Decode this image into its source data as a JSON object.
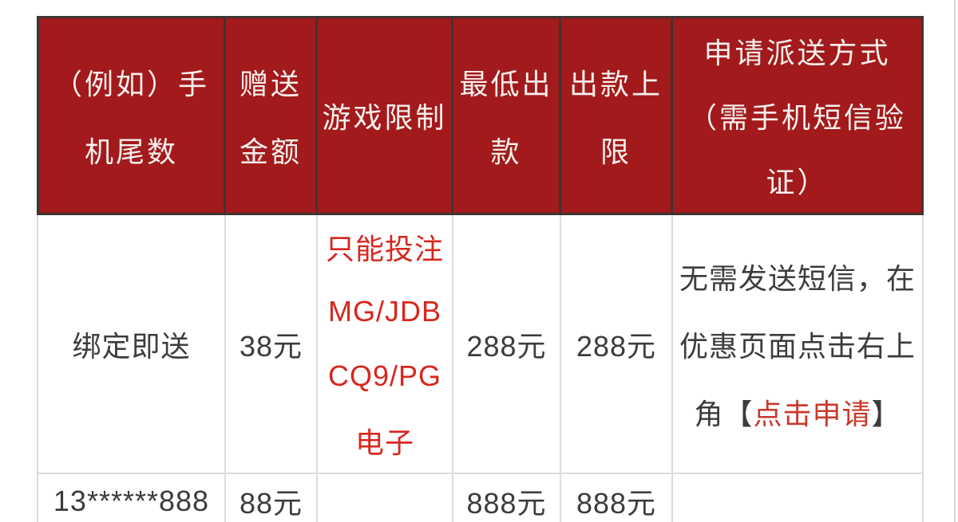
{
  "colors": {
    "header_bg": "#a21a1c",
    "header_border": "#3f3430",
    "header_text": "#f7efec",
    "body_border": "#dcdcdc",
    "body_text": "#3c3c3c",
    "restriction_red": "#d7271d",
    "apply_link_red": "#c83a2c",
    "page_bg": "#ffffff"
  },
  "table": {
    "header": [
      {
        "lines": [
          "（例如）手",
          "机尾数"
        ]
      },
      {
        "lines": [
          "赠送",
          "金额"
        ]
      },
      {
        "lines": [
          "游戏限制"
        ]
      },
      {
        "lines": [
          "最低出",
          "款"
        ]
      },
      {
        "lines": [
          "出款上",
          "限"
        ]
      },
      {
        "lines": [
          "申请派送方式",
          "（需手机短信验",
          "证）"
        ]
      }
    ],
    "rows": [
      {
        "phone_tail": "绑定即送",
        "gift_amount": "38元",
        "restriction_lines": [
          "只能投注",
          "MG/JDB",
          "CQ9/PG",
          "电子"
        ],
        "min_withdrawal": "288元",
        "withdrawal_limit": "288元",
        "apply_line_1": "无需发送短信，在",
        "apply_line_2": "优惠页面点击右上",
        "apply_line_3_prefix": "角【",
        "apply_link": "点击申请",
        "apply_line_3_suffix": "】"
      },
      {
        "phone_tail": "13******888",
        "gift_amount": "88元",
        "min_withdrawal": "888元",
        "withdrawal_limit": "888元"
      }
    ]
  }
}
